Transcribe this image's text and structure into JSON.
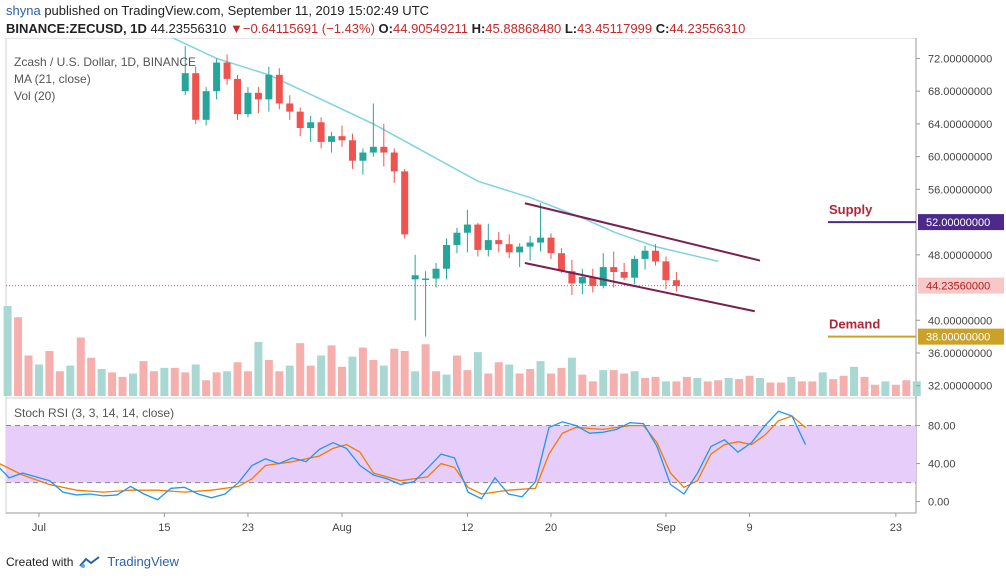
{
  "header": {
    "user": "shyna",
    "published": " published on TradingView.com, September 11, 2019 15:02:49 UTC",
    "symbol": "BINANCE:ZECUSD, 1D",
    "last": "44.23556310",
    "arrow": "▼",
    "change": "−0.64115691 (−1.43%)",
    "o_label": "O:",
    "o": "44.90549211",
    "h_label": "H:",
    "h": "45.88868480",
    "l_label": "L:",
    "l": "43.45117999",
    "c_label": "C:",
    "c": "44.23556310"
  },
  "legend": {
    "title": "Zcash / U.S. Dollar, 1D, BINANCE",
    "ma": "MA (21, close)",
    "vol": "Vol (20)",
    "stoch": "Stoch RSI (3, 3, 14, 14, close)"
  },
  "footer": {
    "created": "Created with",
    "brand": "TradingView"
  },
  "colors": {
    "up": "#26a69a",
    "down": "#ef5350",
    "ma": "#7fd3e0",
    "channel": "#7a1f4f",
    "supply": "#4b2a8a",
    "demand": "#c9a227",
    "stochK": "#2196f3",
    "stochD": "#f57c00"
  },
  "chart_data": {
    "type": "candlestick",
    "title": "Zcash / U.S. Dollar, 1D, BINANCE",
    "price_axis": {
      "ticks": [
        "72.00000000",
        "68.00000000",
        "64.00000000",
        "60.00000000",
        "56.00000000",
        "52.00000000",
        "48.00000000",
        "44.23556310",
        "40.00000000",
        "38.00000000",
        "36.00000000",
        "32.00000000"
      ],
      "range": [
        30.5,
        74.5
      ]
    },
    "date_axis": {
      "labels": [
        "Jul",
        "15",
        "23",
        "Aug",
        "12",
        "20",
        "Sep",
        "9",
        "23"
      ],
      "label_days": [
        3,
        15,
        23,
        32,
        44,
        52,
        63,
        71,
        85
      ],
      "first_day": 0
    },
    "candles": [
      [
        68.0,
        73.5,
        67.5,
        70.2
      ],
      [
        70.2,
        71.0,
        64.0,
        64.5
      ],
      [
        64.5,
        68.5,
        63.8,
        68.0
      ],
      [
        68.0,
        72.0,
        67.0,
        71.5
      ],
      [
        71.5,
        72.5,
        68.8,
        69.5
      ],
      [
        69.5,
        70.0,
        64.5,
        65.2
      ],
      [
        65.2,
        68.5,
        64.8,
        67.8
      ],
      [
        67.8,
        68.5,
        65.3,
        67.0
      ],
      [
        67.0,
        71.0,
        65.5,
        70.0
      ],
      [
        70.0,
        70.8,
        65.8,
        66.5
      ],
      [
        66.5,
        67.5,
        64.5,
        65.5
      ],
      [
        65.5,
        66.0,
        62.5,
        63.5
      ],
      [
        63.5,
        65.0,
        61.8,
        64.2
      ],
      [
        64.2,
        64.8,
        61.0,
        61.8
      ],
      [
        61.8,
        63.0,
        60.5,
        62.5
      ],
      [
        62.5,
        63.8,
        61.2,
        62.0
      ],
      [
        62.0,
        62.8,
        58.5,
        59.5
      ],
      [
        59.5,
        61.0,
        57.8,
        60.5
      ],
      [
        60.5,
        66.5,
        60.0,
        61.2
      ],
      [
        61.2,
        64.0,
        58.8,
        60.5
      ],
      [
        60.5,
        61.0,
        56.8,
        58.2
      ],
      [
        58.2,
        58.5,
        50.0,
        50.5
      ],
      [
        45.0,
        48.0,
        40.0,
        45.5
      ],
      [
        45.0,
        46.0,
        38.0,
        45.1
      ],
      [
        45.1,
        47.0,
        44.0,
        46.3
      ],
      [
        46.3,
        50.0,
        45.0,
        49.2
      ],
      [
        49.2,
        51.3,
        48.2,
        50.7
      ],
      [
        50.7,
        53.5,
        48.3,
        51.7
      ],
      [
        51.7,
        51.9,
        47.8,
        48.6
      ],
      [
        48.6,
        51.8,
        47.8,
        49.8
      ],
      [
        49.8,
        50.8,
        48.3,
        49.3
      ],
      [
        49.3,
        50.5,
        47.6,
        48.3
      ],
      [
        48.3,
        49.4,
        46.5,
        49.0
      ],
      [
        49.0,
        50.3,
        47.3,
        49.5
      ],
      [
        49.5,
        54.3,
        48.4,
        50.1
      ],
      [
        50.1,
        50.6,
        47.5,
        48.2
      ],
      [
        48.2,
        48.8,
        45.8,
        46.0
      ],
      [
        46.0,
        47.4,
        43.1,
        44.5
      ],
      [
        44.5,
        46.3,
        43.2,
        45.3
      ],
      [
        45.3,
        46.3,
        43.4,
        44.2
      ],
      [
        44.2,
        48.2,
        43.9,
        46.5
      ],
      [
        46.5,
        48.4,
        44.0,
        45.9
      ],
      [
        45.9,
        47.0,
        44.9,
        45.2
      ],
      [
        45.2,
        47.9,
        44.4,
        47.5
      ],
      [
        47.5,
        49.1,
        46.2,
        48.5
      ],
      [
        48.5,
        49.3,
        46.7,
        47.2
      ],
      [
        47.2,
        47.8,
        43.8,
        44.9
      ],
      [
        44.9,
        45.9,
        43.5,
        44.2
      ]
    ],
    "candle_days": [
      17,
      18,
      19,
      20,
      21,
      22,
      23,
      24,
      25,
      26,
      27,
      28,
      29,
      30,
      31,
      32,
      33,
      34,
      35,
      36,
      37,
      38,
      39,
      40,
      41,
      42,
      43,
      44,
      45,
      46,
      47,
      48,
      49,
      50,
      51,
      52,
      53,
      54,
      55,
      56,
      57,
      58,
      59,
      60,
      61,
      62,
      63,
      64
    ],
    "ma21": [
      [
        0,
        79
      ],
      [
        8,
        78
      ],
      [
        15,
        75
      ],
      [
        20,
        72
      ],
      [
        25,
        70
      ],
      [
        30,
        67
      ],
      [
        35,
        64
      ],
      [
        40,
        60.5
      ],
      [
        45,
        57
      ],
      [
        50,
        55
      ],
      [
        55,
        52.5
      ],
      [
        58,
        50.8
      ],
      [
        62,
        49
      ],
      [
        66,
        47.8
      ],
      [
        68,
        47.2
      ]
    ],
    "channel_upper": [
      [
        49.5,
        54.3
      ],
      [
        72,
        47.3
      ]
    ],
    "channel_lower": [
      [
        49.5,
        47.0
      ],
      [
        71.5,
        41.1
      ]
    ],
    "supply_level": 52.0,
    "demand_level": 38.0,
    "last_price": 44.2356,
    "supply_label": "Supply",
    "demand_label": "Demand",
    "volume": [
      80,
      70,
      36,
      28,
      40,
      22,
      27,
      52,
      34,
      24,
      21,
      17,
      20,
      31,
      22,
      25,
      25,
      21,
      28,
      14,
      21,
      22,
      30,
      22,
      48,
      32,
      22,
      27,
      47,
      27,
      36,
      45,
      26,
      35,
      43,
      32,
      27,
      42,
      40,
      22,
      46,
      22,
      19,
      36,
      23,
      39,
      20,
      30,
      28,
      20,
      24,
      31,
      20,
      25,
      34,
      19,
      13,
      23,
      23,
      20,
      22,
      16,
      17,
      13,
      13,
      17,
      16,
      13,
      14,
      16,
      15,
      18,
      16,
      12,
      12,
      17,
      13,
      13,
      21,
      15,
      18,
      26,
      17,
      10,
      13,
      10,
      14,
      13
    ],
    "stoch_axis": {
      "ticks": [
        "80.00",
        "40.00",
        "0.00"
      ],
      "band": [
        20,
        80
      ],
      "range": [
        -12,
        109
      ]
    },
    "stochK": [
      [
        -2,
        40
      ],
      [
        0,
        25
      ],
      [
        2,
        30
      ],
      [
        4,
        26
      ],
      [
        6,
        22
      ],
      [
        8,
        10
      ],
      [
        10,
        7
      ],
      [
        12,
        8
      ],
      [
        14,
        6
      ],
      [
        16,
        7
      ],
      [
        18,
        16
      ],
      [
        20,
        8
      ],
      [
        22,
        2
      ],
      [
        24,
        14
      ],
      [
        26,
        15
      ],
      [
        28,
        8
      ],
      [
        30,
        4
      ],
      [
        32,
        8
      ],
      [
        34,
        20
      ],
      [
        36,
        38
      ],
      [
        38,
        45
      ],
      [
        40,
        40
      ],
      [
        42,
        46
      ],
      [
        44,
        42
      ],
      [
        46,
        55
      ],
      [
        48,
        62
      ],
      [
        50,
        56
      ],
      [
        52,
        38
      ],
      [
        54,
        28
      ],
      [
        56,
        24
      ],
      [
        58,
        18
      ],
      [
        60,
        21
      ],
      [
        62,
        35
      ],
      [
        64,
        50
      ],
      [
        66,
        46
      ],
      [
        68,
        10
      ],
      [
        70,
        3
      ],
      [
        72,
        25
      ],
      [
        74,
        8
      ],
      [
        76,
        5
      ],
      [
        78,
        21
      ],
      [
        80,
        78
      ],
      [
        82,
        84
      ],
      [
        84,
        80
      ],
      [
        86,
        72
      ],
      [
        88,
        73
      ],
      [
        90,
        76
      ],
      [
        92,
        83
      ],
      [
        94,
        82
      ],
      [
        96,
        58
      ],
      [
        98,
        18
      ],
      [
        100,
        8
      ],
      [
        102,
        30
      ],
      [
        104,
        58
      ],
      [
        106,
        65
      ],
      [
        108,
        52
      ],
      [
        110,
        62
      ],
      [
        112,
        80
      ],
      [
        114,
        95
      ],
      [
        116,
        90
      ],
      [
        118,
        60
      ]
    ],
    "stochD": [
      [
        -2,
        42
      ],
      [
        2,
        28
      ],
      [
        6,
        18
      ],
      [
        10,
        12
      ],
      [
        14,
        10
      ],
      [
        18,
        12
      ],
      [
        22,
        12
      ],
      [
        26,
        10
      ],
      [
        30,
        12
      ],
      [
        34,
        16
      ],
      [
        36,
        24
      ],
      [
        38,
        38
      ],
      [
        40,
        40
      ],
      [
        42,
        42
      ],
      [
        46,
        48
      ],
      [
        48,
        56
      ],
      [
        50,
        60
      ],
      [
        52,
        52
      ],
      [
        54,
        30
      ],
      [
        58,
        22
      ],
      [
        62,
        26
      ],
      [
        64,
        40
      ],
      [
        66,
        36
      ],
      [
        68,
        15
      ],
      [
        70,
        8
      ],
      [
        74,
        12
      ],
      [
        78,
        14
      ],
      [
        80,
        50
      ],
      [
        82,
        72
      ],
      [
        84,
        78
      ],
      [
        88,
        76
      ],
      [
        92,
        80
      ],
      [
        94,
        80
      ],
      [
        96,
        62
      ],
      [
        98,
        30
      ],
      [
        100,
        15
      ],
      [
        102,
        22
      ],
      [
        104,
        50
      ],
      [
        106,
        60
      ],
      [
        108,
        63
      ],
      [
        110,
        60
      ],
      [
        112,
        70
      ],
      [
        114,
        85
      ],
      [
        116,
        90
      ],
      [
        118,
        78
      ]
    ]
  }
}
